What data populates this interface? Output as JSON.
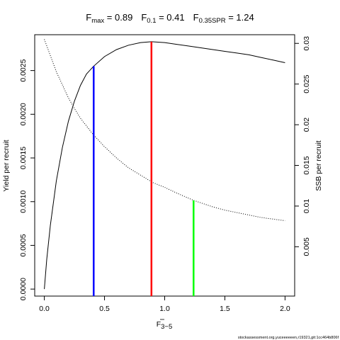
{
  "title": {
    "fmax_label": "F",
    "fmax_sub": "max",
    "fmax_value": " = 0.89",
    "f01_label": "F",
    "f01_sub": "0.1",
    "f01_value": " = 0.41",
    "fspr_label": "F",
    "fspr_sub": "0.35SPR",
    "fspr_value": " = 1.24"
  },
  "footer": "stockassessment.org,yuceeeeeen,r19321,git:1cc464b806f",
  "chart_data": {
    "type": "line",
    "xlabel": "F",
    "xlabel_sub": "3−5",
    "ylabel_left": "Yield per recruit",
    "ylabel_right": "SSB per recruit",
    "xlim": [
      -0.08,
      2.08
    ],
    "ylim_left": [
      -8e-05,
      0.00291
    ],
    "ylim_right": [
      -0.001066,
      0.031066
    ],
    "x_ticks": [
      0,
      0.5,
      1,
      1.5,
      2
    ],
    "x_tick_labels": [
      "0.0",
      "0.5",
      "1.0",
      "1.5",
      "2.0"
    ],
    "y_left_ticks": [
      0,
      0.0005,
      0.001,
      0.0015,
      0.002,
      0.0025
    ],
    "y_left_tick_labels": [
      "0.0000",
      "0.0005",
      "0.0010",
      "0.0015",
      "0.0020",
      "0.0025"
    ],
    "y_right_ticks": [
      0.005,
      0.01,
      0.015,
      0.02,
      0.025,
      0.03
    ],
    "y_right_tick_labels": [
      "0.005",
      "0.01",
      "0.015",
      "0.02",
      "0.025",
      "0.03"
    ],
    "series": [
      {
        "axis": "left",
        "line_style": "solid",
        "color": "#000000",
        "x": [
          0,
          0.02,
          0.05,
          0.1,
          0.15,
          0.2,
          0.25,
          0.3,
          0.35,
          0.41,
          0.5,
          0.6,
          0.7,
          0.8,
          0.89,
          1.0,
          1.1,
          1.2,
          1.3,
          1.4,
          1.5,
          1.6,
          1.7,
          1.8,
          1.9,
          2.0
        ],
        "y": [
          0.0,
          0.00034,
          0.00073,
          0.00124,
          0.00162,
          0.00192,
          0.00215,
          0.00233,
          0.00246,
          0.00255,
          0.00266,
          0.00274,
          0.00279,
          0.00282,
          0.00283,
          0.00282,
          0.0028,
          0.00278,
          0.00276,
          0.00274,
          0.00272,
          0.0027,
          0.00268,
          0.00265,
          0.00262,
          0.00259
        ]
      },
      {
        "axis": "right",
        "line_style": "dotted",
        "color": "#000000",
        "x": [
          0,
          0.05,
          0.1,
          0.15,
          0.2,
          0.25,
          0.3,
          0.4,
          0.5,
          0.6,
          0.7,
          0.8,
          0.9,
          1.0,
          1.1,
          1.24,
          1.3,
          1.4,
          1.5,
          1.6,
          1.7,
          1.8,
          1.9,
          2.0
        ],
        "y": [
          0.0305,
          0.0285,
          0.0265,
          0.0249,
          0.0233,
          0.022,
          0.0208,
          0.0189,
          0.0173,
          0.0159,
          0.0147,
          0.0138,
          0.0129,
          0.0123,
          0.0116,
          0.0107,
          0.0104,
          0.0099,
          0.0095,
          0.0092,
          0.0089,
          0.0086,
          0.0084,
          0.0082
        ]
      }
    ],
    "reference_lines": [
      {
        "name": "F0.1",
        "x": 0.41,
        "y_left_top": 0.00255,
        "color": "#0000ff"
      },
      {
        "name": "Fmax",
        "x": 0.89,
        "y_left_top": 0.00283,
        "color": "#ff0000"
      },
      {
        "name": "F0.35SPR",
        "x": 1.24,
        "y_right_top": 0.0107,
        "color": "#00ff00"
      }
    ]
  }
}
